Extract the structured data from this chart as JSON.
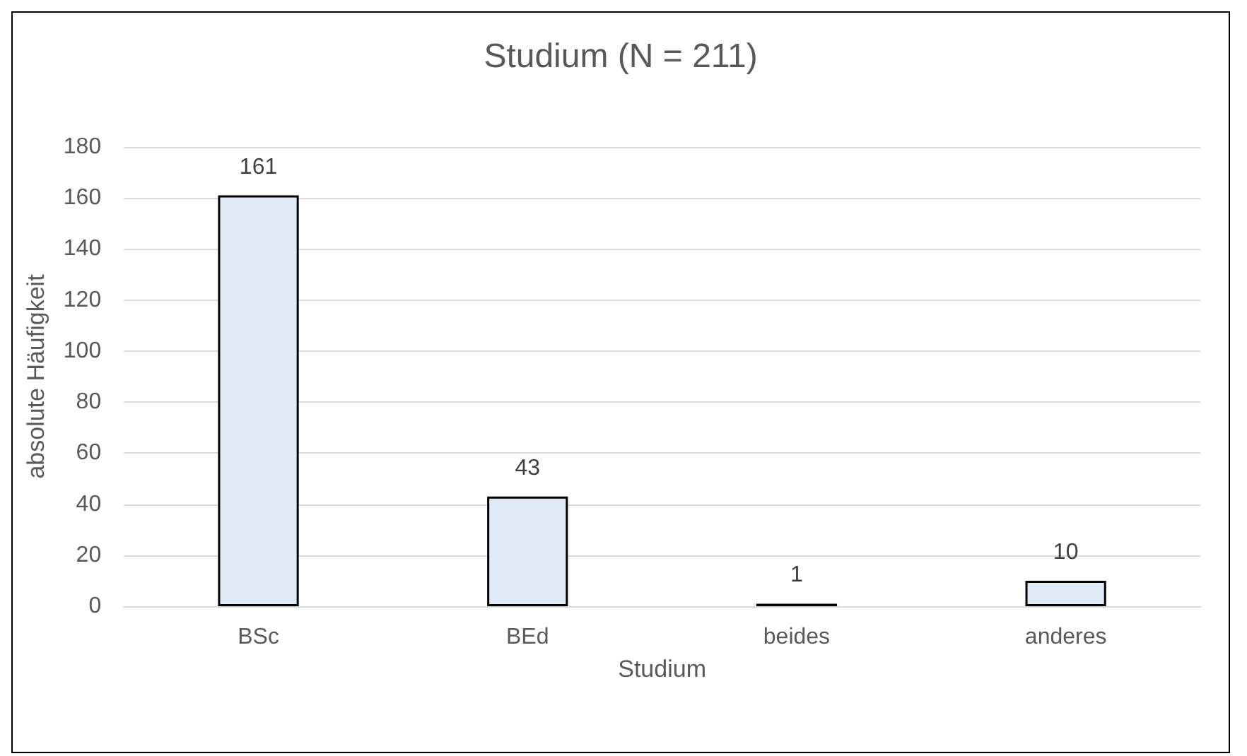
{
  "chart_data": {
    "type": "bar",
    "title": "Studium (N = 211)",
    "xlabel": "Studium",
    "ylabel": "absolute Häufigkeit",
    "categories": [
      "BSc",
      "BEd",
      "beides",
      "anderes"
    ],
    "values": [
      161,
      43,
      1,
      10
    ],
    "color": "#deebf7",
    "ylim": [
      0,
      180
    ],
    "yticks": [
      0,
      20,
      40,
      60,
      80,
      100,
      120,
      140,
      160,
      180
    ],
    "grid": "y",
    "data_labels": true
  }
}
